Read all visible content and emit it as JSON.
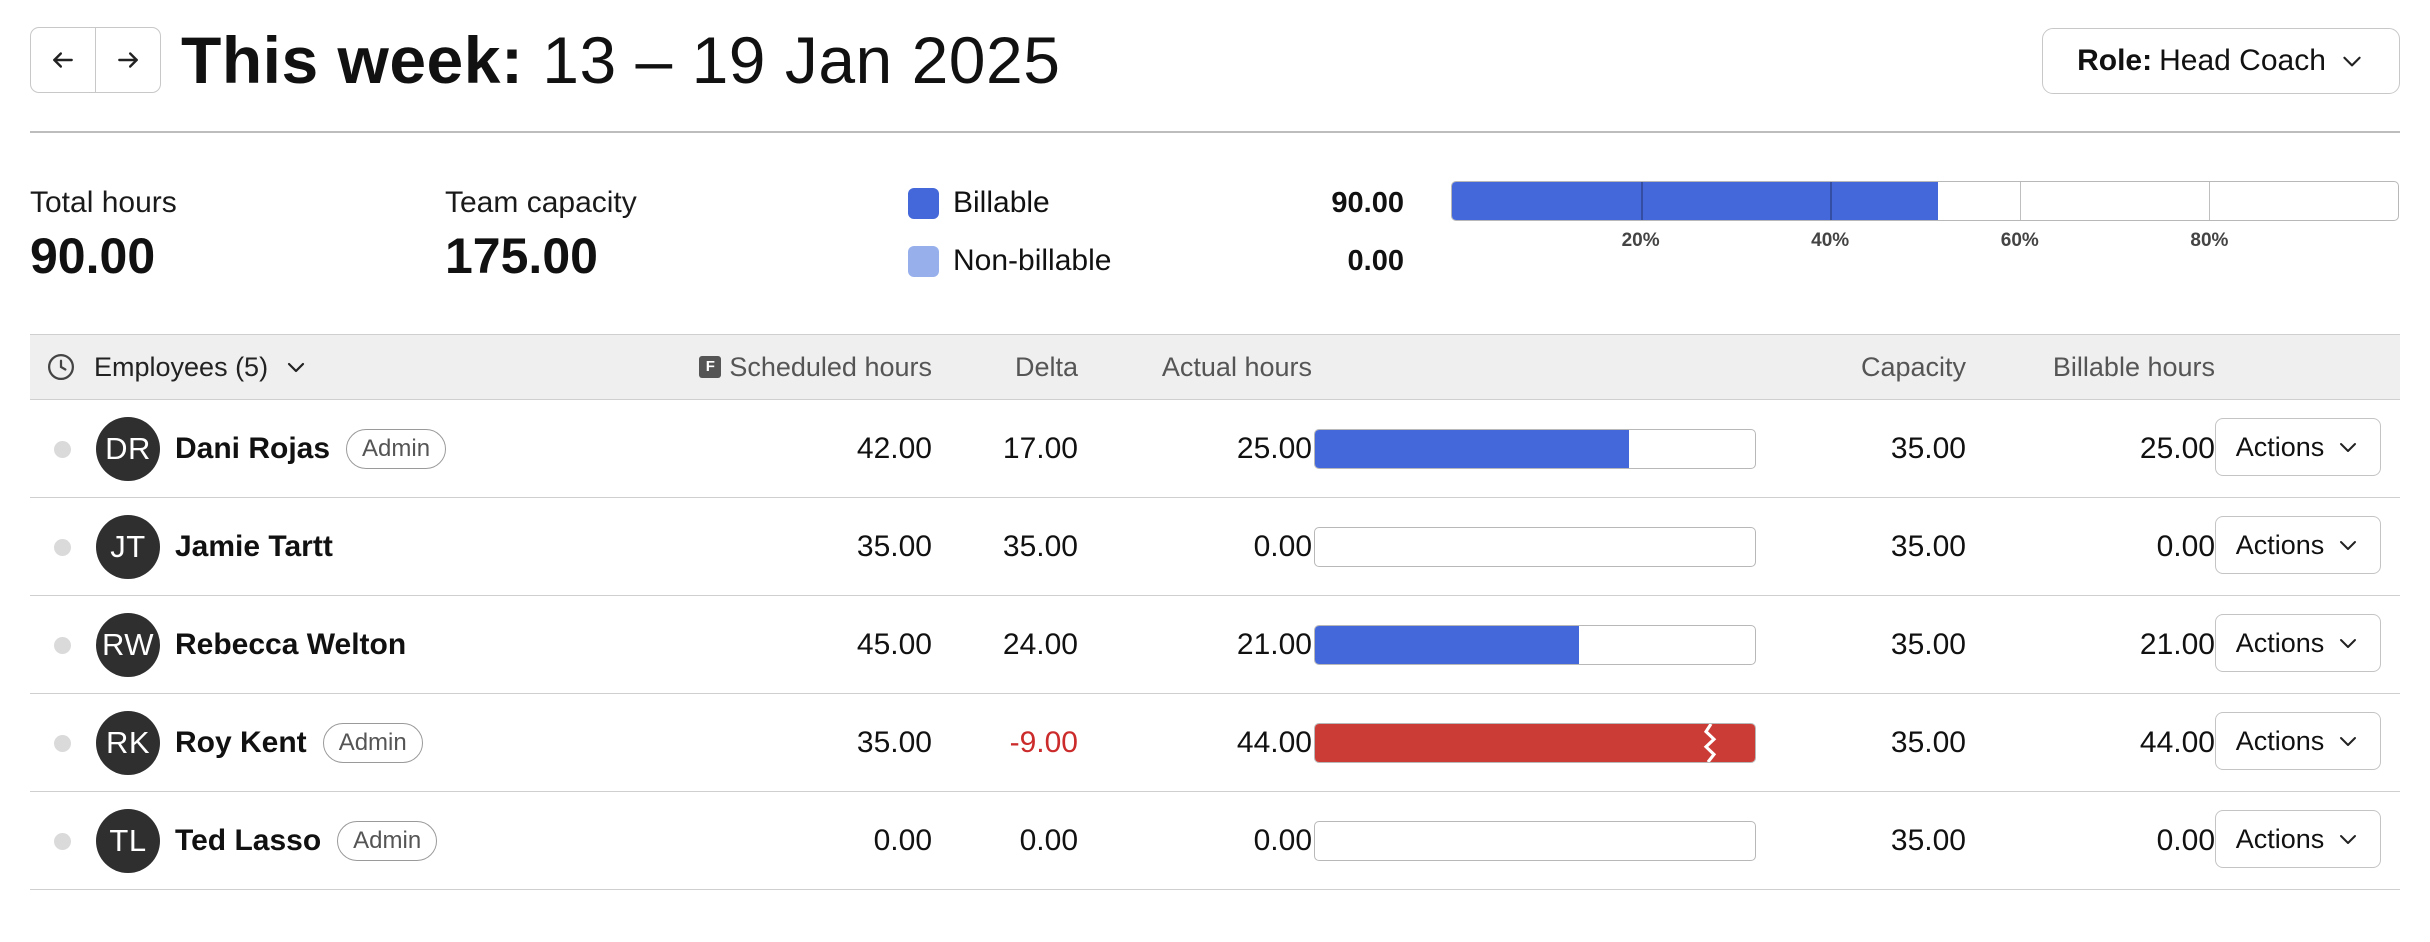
{
  "header": {
    "prev_label": "Previous week",
    "next_label": "Next week",
    "title_strong": "This week:",
    "title_range": "13 – 19 Jan 2025",
    "role_key": "Role:",
    "role_value": "Head Coach"
  },
  "summary": {
    "total_hours_label": "Total hours",
    "total_hours_value": "90.00",
    "team_capacity_label": "Team capacity",
    "team_capacity_value": "175.00",
    "billable_label": "Billable",
    "billable_value": "90.00",
    "nonbillable_label": "Non-billable",
    "nonbillable_value": "0.00",
    "bar_percent": 51.4,
    "ticks": [
      "20%",
      "40%",
      "60%",
      "80%"
    ],
    "colors": {
      "billable": "#4468d9",
      "nonbillable": "#97b0ec",
      "over": "#cc3c36",
      "negative": "#cc2b2b"
    }
  },
  "table": {
    "employees_header": "Employees (5)",
    "scheduled_header": "Scheduled hours",
    "delta_header": "Delta",
    "actual_header": "Actual hours",
    "capacity_header": "Capacity",
    "billable_header": "Billable hours",
    "rows": [
      {
        "initials": "DR",
        "name": "Dani Rojas",
        "badge": "Admin",
        "scheduled": "42.00",
        "delta": "17.00",
        "actual": "25.00",
        "capacity": "35.00",
        "billable": "25.00",
        "fill_percent": 71.4,
        "action_label": "Actions"
      },
      {
        "initials": "JT",
        "name": "Jamie Tartt",
        "badge": "",
        "scheduled": "35.00",
        "delta": "35.00",
        "actual": "0.00",
        "capacity": "35.00",
        "billable": "0.00",
        "fill_percent": 0,
        "action_label": "Actions"
      },
      {
        "initials": "RW",
        "name": "Rebecca Welton",
        "badge": "",
        "scheduled": "45.00",
        "delta": "24.00",
        "actual": "21.00",
        "capacity": "35.00",
        "billable": "21.00",
        "fill_percent": 60,
        "action_label": "Actions"
      },
      {
        "initials": "RK",
        "name": "Roy Kent",
        "badge": "Admin",
        "scheduled": "35.00",
        "delta": "-9.00",
        "actual": "44.00",
        "capacity": "35.00",
        "billable": "44.00",
        "fill_percent": 100,
        "action_label": "Actions"
      },
      {
        "initials": "TL",
        "name": "Ted Lasso",
        "badge": "Admin",
        "scheduled": "0.00",
        "delta": "0.00",
        "actual": "0.00",
        "capacity": "35.00",
        "billable": "0.00",
        "fill_percent": 0,
        "action_label": "Actions"
      }
    ]
  }
}
